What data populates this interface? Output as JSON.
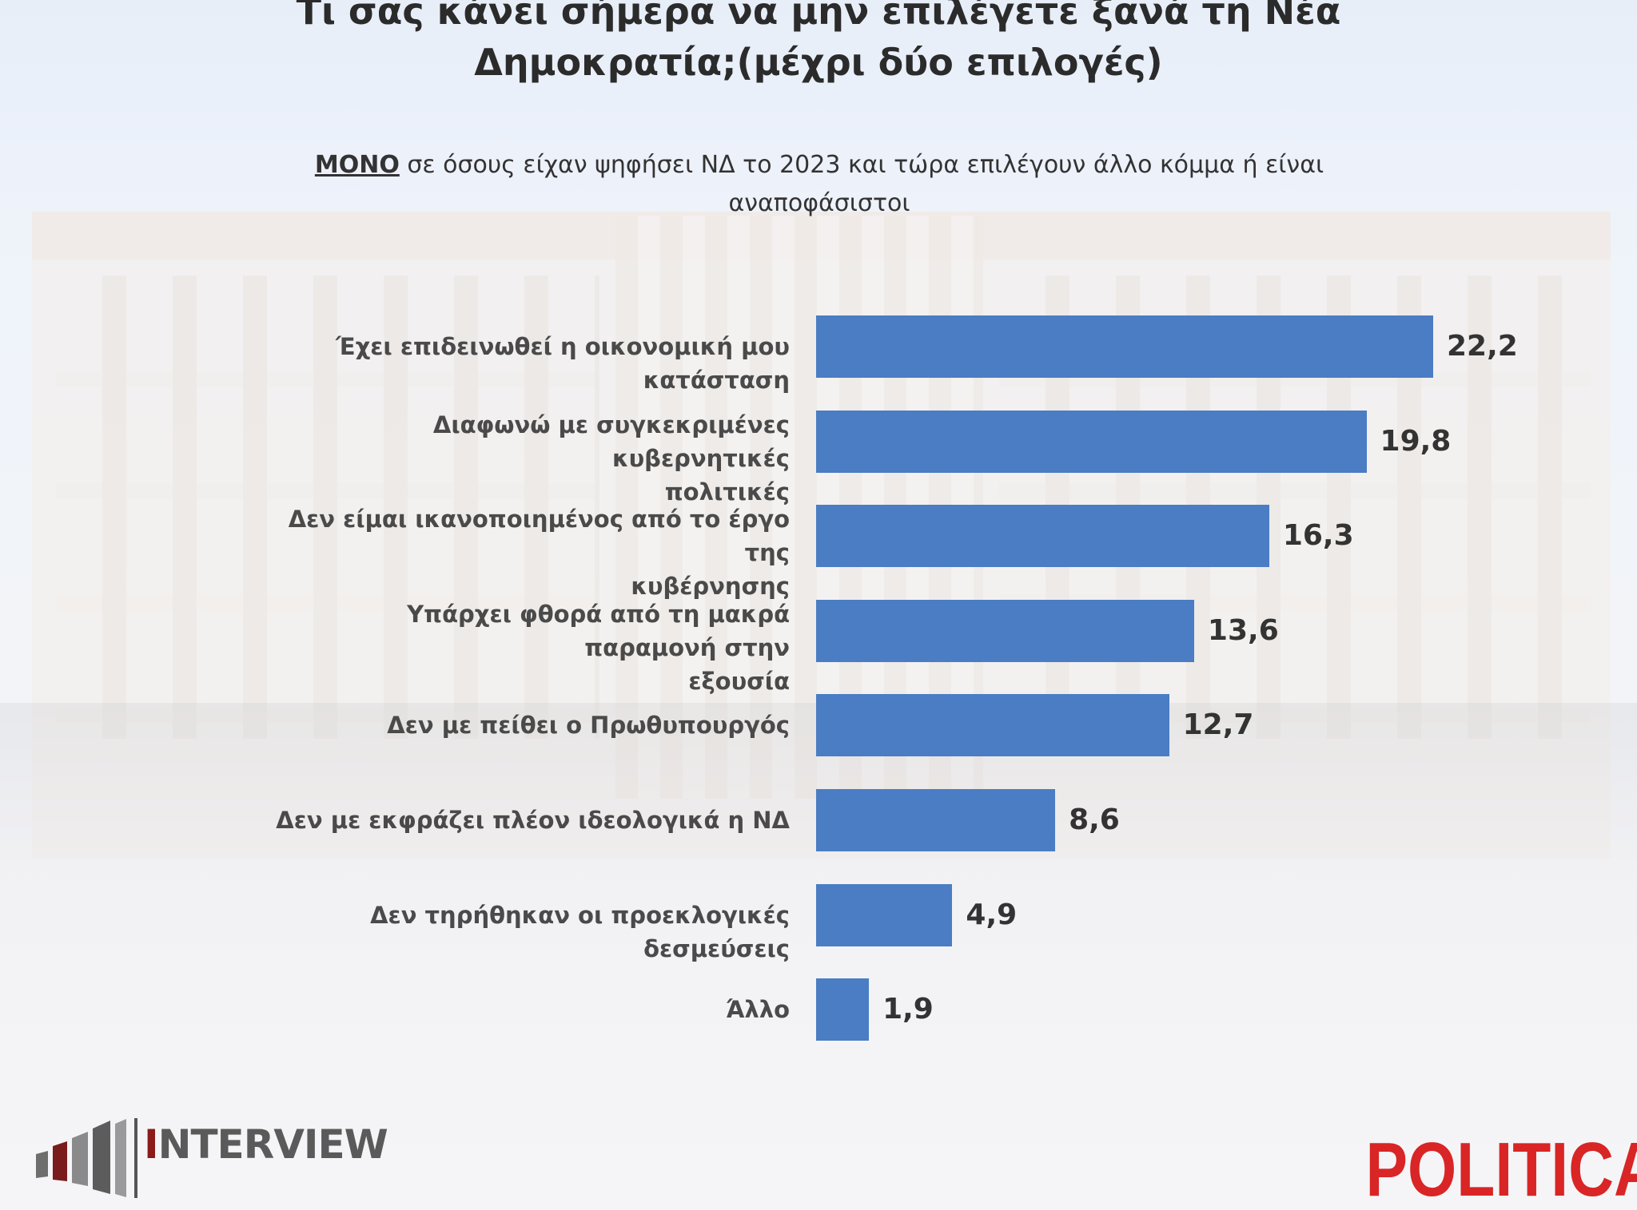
{
  "title": {
    "line1": "Τι σας κάνει σήμερα να μην επιλέγετε ξανά τη Νέα",
    "line2": "Δημοκρατία;(μέχρι δύο επιλογές)"
  },
  "subtitle": {
    "emphasis": "ΜΟΝΟ",
    "line1_rest": " σε όσους είχαν ψηφήσει ΝΔ το 2023 και τώρα επιλέγουν άλλο κόμμα ή είναι",
    "line2": "αναποφάσιστοι"
  },
  "chart_data": {
    "type": "bar",
    "orientation": "horizontal",
    "categories": [
      "Έχει επιδεινωθεί η οικονομική μου κατάσταση",
      "Διαφωνώ με συγκεκριμένες κυβερνητικές πολιτικές",
      "Δεν είμαι ικανοποιημένος από το έργο της κυβέρνησης",
      "Υπάρχει φθορά από τη μακρά παραμονή στην εξουσία",
      "Δεν με πείθει ο Πρωθυπουργός",
      "Δεν με εκφράζει πλέον ιδεολογικά η ΝΔ",
      "Δεν τηρήθηκαν οι προεκλογικές δεσμεύσεις",
      "Άλλο"
    ],
    "category_lines": [
      [
        "Έχει επιδεινωθεί η οικονομική μου κατάσταση"
      ],
      [
        "Διαφωνώ με συγκεκριμένες κυβερνητικές",
        "πολιτικές"
      ],
      [
        "Δεν είμαι ικανοποιημένος από το έργο της",
        "κυβέρνησης"
      ],
      [
        "Υπάρχει φθορά από τη μακρά παραμονή στην",
        "εξουσία"
      ],
      [
        "Δεν με πείθει ο Πρωθυπουργός"
      ],
      [
        "Δεν με εκφράζει πλέον ιδεολογικά η ΝΔ"
      ],
      [
        "Δεν τηρήθηκαν οι προεκλογικές δεσμεύσεις"
      ],
      [
        "Άλλο"
      ]
    ],
    "values": [
      22.2,
      19.8,
      16.3,
      13.6,
      12.7,
      8.6,
      4.9,
      1.9
    ],
    "value_labels": [
      "22,2",
      "19,8",
      "16,3",
      "13,6",
      "12,7",
      "8,6",
      "4,9",
      "1,9"
    ],
    "xlim": [
      0,
      22.2
    ],
    "bar_color": "#4a7dc3",
    "grid": false,
    "legend": "none"
  },
  "logos": {
    "interview": {
      "first_letter": "I",
      "rest": "NTERVIEW",
      "color": "#8b1a1a"
    },
    "political": {
      "text": "POLITICAL",
      "color": "#d92525"
    }
  }
}
